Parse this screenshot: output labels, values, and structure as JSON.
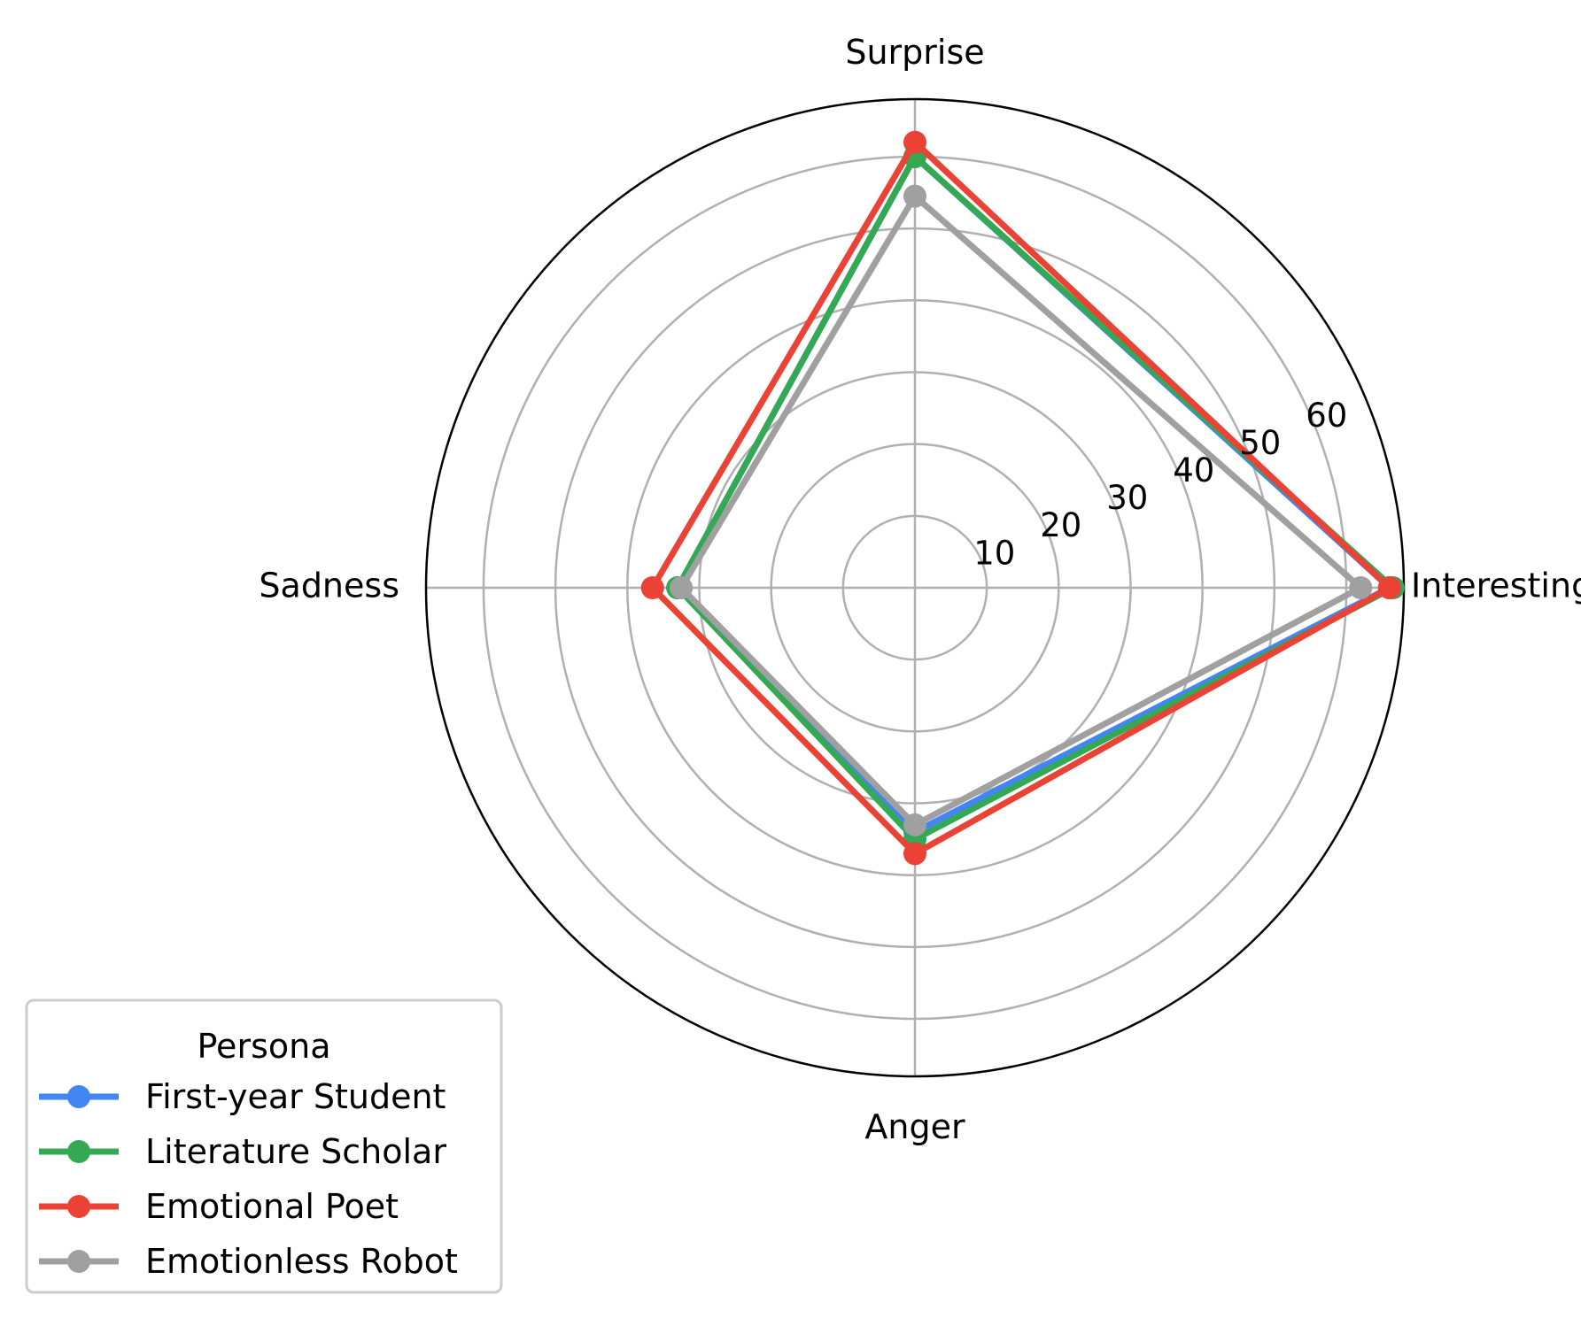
{
  "chart_data": {
    "type": "radar",
    "axes": [
      "Interesting",
      "Surprise",
      "Sadness",
      "Anger"
    ],
    "r_ticks": [
      10,
      20,
      30,
      40,
      50,
      60
    ],
    "r_max": 68,
    "grid": true,
    "legend": {
      "title": "Persona",
      "placement": "lower-left"
    },
    "series": [
      {
        "name": "First-year Student",
        "color": "#4285f4",
        "values": [
          66,
          60,
          33,
          34
        ]
      },
      {
        "name": "Literature Scholar",
        "color": "#34a853",
        "values": [
          66.5,
          60,
          33,
          35
        ]
      },
      {
        "name": "Emotional Poet",
        "color": "#ea4335",
        "values": [
          66,
          62,
          36.5,
          37
        ]
      },
      {
        "name": "Emotionless Robot",
        "color": "#a0a0a0",
        "values": [
          62,
          54.5,
          32.5,
          33
        ]
      }
    ]
  }
}
